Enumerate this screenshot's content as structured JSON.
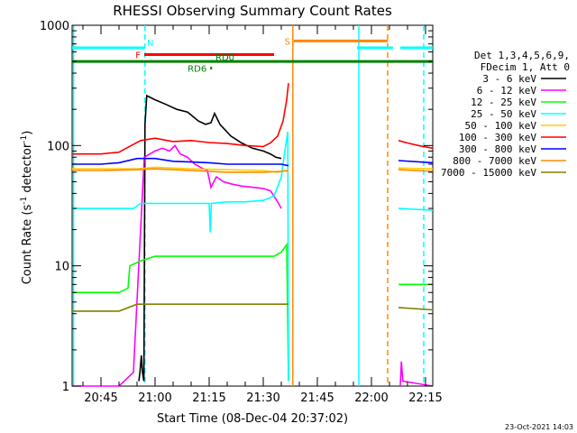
{
  "chart_data": {
    "type": "line",
    "title": "RHESSI Observing Summary Count Rates",
    "xlabel": "Start Time (08-Dec-04 20:37:02)",
    "ylabel": "Count Rate (s⁻¹ detector⁻¹)",
    "ylabel_main": "Count Rate (s",
    "ylabel_sup1": "-1",
    "ylabel_mid": " detector",
    "ylabel_sup2": "-1",
    "ylabel_end": ")",
    "y_scale": "log",
    "ylim": [
      1,
      1000
    ],
    "xlim_minutes_after_20_00": [
      37,
      137
    ],
    "x_ticks": [
      {
        "label": "20:45",
        "t": 45
      },
      {
        "label": "21:00",
        "t": 60
      },
      {
        "label": "21:15",
        "t": 75
      },
      {
        "label": "21:30",
        "t": 90
      },
      {
        "label": "21:45",
        "t": 105
      },
      {
        "label": "22:00",
        "t": 120
      },
      {
        "label": "22:15",
        "t": 135
      }
    ],
    "y_ticks": [
      {
        "label": "1",
        "v": 1
      },
      {
        "label": "10",
        "v": 10
      },
      {
        "label": "100",
        "v": 100
      },
      {
        "label": "1000",
        "v": 1000
      }
    ],
    "legend_header": [
      "Det 1,3,4,5,6,9,",
      "FDecim 1, Att 0"
    ],
    "series": [
      {
        "name": "3 - 6 keV",
        "color": "#000000",
        "points": [
          [
            55.5,
            1.1
          ],
          [
            55.8,
            1.3
          ],
          [
            56.2,
            1.8
          ],
          [
            56.5,
            1.3
          ],
          [
            56.9,
            1.1
          ],
          [
            57.2,
            150
          ],
          [
            57.7,
            260
          ],
          [
            60,
            240
          ],
          [
            63,
            220
          ],
          [
            66,
            200
          ],
          [
            69,
            190
          ],
          [
            72,
            160
          ],
          [
            74,
            150
          ],
          [
            75.5,
            155
          ],
          [
            76.5,
            185
          ],
          [
            78,
            150
          ],
          [
            81,
            120
          ],
          [
            84,
            105
          ],
          [
            87,
            95
          ],
          [
            90,
            90
          ],
          [
            92,
            85
          ],
          [
            93.5,
            80
          ],
          [
            95,
            78
          ]
        ],
        "after": []
      },
      {
        "name": "6 - 12 keV",
        "color": "#ff00ff",
        "points": [
          [
            37,
            1.0
          ],
          [
            50,
            1.0
          ],
          [
            54,
            1.3
          ],
          [
            57,
            80
          ],
          [
            60,
            90
          ],
          [
            62,
            95
          ],
          [
            64,
            90
          ],
          [
            65.5,
            100
          ],
          [
            67,
            85
          ],
          [
            69,
            80
          ],
          [
            71,
            70
          ],
          [
            73,
            65
          ],
          [
            74.5,
            62
          ],
          [
            75.5,
            45
          ],
          [
            77,
            55
          ],
          [
            79,
            50
          ],
          [
            81,
            48
          ],
          [
            84,
            46
          ],
          [
            87,
            45
          ],
          [
            90,
            44
          ],
          [
            92,
            42
          ],
          [
            93,
            38
          ],
          [
            94,
            34
          ],
          [
            95,
            30
          ]
        ],
        "after": [
          [
            128,
            1.0
          ],
          [
            128.3,
            1.6
          ],
          [
            128.7,
            1.1
          ],
          [
            137,
            1.0
          ]
        ]
      },
      {
        "name": "12 - 25 keV",
        "color": "#00ff00",
        "points": [
          [
            37,
            6
          ],
          [
            45,
            6
          ],
          [
            50,
            6
          ],
          [
            52.5,
            6.5
          ],
          [
            53,
            10
          ],
          [
            56,
            11
          ],
          [
            60,
            12
          ],
          [
            65,
            12
          ],
          [
            70,
            12
          ],
          [
            75,
            12
          ],
          [
            80,
            12
          ],
          [
            85,
            12
          ],
          [
            90,
            12
          ],
          [
            93,
            12
          ],
          [
            95,
            13
          ],
          [
            96.5,
            15
          ],
          [
            97,
            1.1
          ]
        ],
        "after": [
          [
            127.5,
            7
          ],
          [
            137,
            7
          ]
        ]
      },
      {
        "name": "25 - 50 keV",
        "color": "#00ffff",
        "points": [
          [
            37,
            30
          ],
          [
            45,
            30
          ],
          [
            50,
            30
          ],
          [
            54,
            30
          ],
          [
            56,
            33
          ],
          [
            60,
            33
          ],
          [
            65,
            33
          ],
          [
            70,
            33
          ],
          [
            74,
            33
          ],
          [
            75,
            33
          ],
          [
            75.3,
            19
          ],
          [
            75.6,
            33
          ],
          [
            80,
            34
          ],
          [
            85,
            34
          ],
          [
            90,
            35
          ],
          [
            93,
            38
          ],
          [
            95,
            55
          ],
          [
            96,
            90
          ],
          [
            96.8,
            130
          ],
          [
            97,
            1.1
          ]
        ],
        "after": [
          [
            127.5,
            30
          ],
          [
            137,
            29
          ]
        ]
      },
      {
        "name": "50 - 100 keV",
        "color": "#ffcc00",
        "points": [
          [
            37,
            64
          ],
          [
            45,
            64
          ],
          [
            55,
            64
          ],
          [
            60,
            66
          ],
          [
            70,
            64
          ],
          [
            80,
            63
          ],
          [
            90,
            62
          ],
          [
            94,
            60
          ],
          [
            96,
            62
          ],
          [
            97,
            60
          ]
        ],
        "after": [
          [
            127.5,
            65
          ],
          [
            137,
            64
          ]
        ]
      },
      {
        "name": "100 - 300 keV",
        "color": "#ff0000",
        "points": [
          [
            37,
            85
          ],
          [
            45,
            85
          ],
          [
            50,
            88
          ],
          [
            52,
            95
          ],
          [
            56,
            110
          ],
          [
            60,
            115
          ],
          [
            65,
            108
          ],
          [
            70,
            110
          ],
          [
            75,
            106
          ],
          [
            80,
            104
          ],
          [
            85,
            100
          ],
          [
            90,
            98
          ],
          [
            92,
            105
          ],
          [
            94,
            120
          ],
          [
            95.5,
            160
          ],
          [
            96.5,
            240
          ],
          [
            97,
            330
          ]
        ],
        "after": [
          [
            127.5,
            110
          ],
          [
            130,
            105
          ],
          [
            133,
            100
          ],
          [
            137,
            95
          ]
        ]
      },
      {
        "name": "300 - 800 keV",
        "color": "#0000ff",
        "points": [
          [
            37,
            70
          ],
          [
            45,
            70
          ],
          [
            50,
            72
          ],
          [
            55,
            78
          ],
          [
            60,
            78
          ],
          [
            65,
            74
          ],
          [
            70,
            73
          ],
          [
            75,
            72
          ],
          [
            80,
            70
          ],
          [
            85,
            70
          ],
          [
            90,
            70
          ],
          [
            95,
            70
          ],
          [
            97,
            68
          ]
        ],
        "after": [
          [
            127.5,
            75
          ],
          [
            137,
            72
          ]
        ]
      },
      {
        "name": "800 - 7000 keV",
        "color": "#ff8800",
        "points": [
          [
            37,
            62
          ],
          [
            45,
            62
          ],
          [
            55,
            63
          ],
          [
            60,
            64
          ],
          [
            70,
            62
          ],
          [
            80,
            60
          ],
          [
            90,
            60
          ],
          [
            95,
            61
          ],
          [
            97,
            62
          ]
        ],
        "after": [
          [
            127.5,
            63
          ],
          [
            137,
            61
          ]
        ]
      },
      {
        "name": "7000 - 15000 keV",
        "color": "#808000",
        "points": [
          [
            37,
            4.2
          ],
          [
            45,
            4.2
          ],
          [
            50,
            4.2
          ],
          [
            55,
            4.8
          ],
          [
            60,
            4.8
          ],
          [
            65,
            4.8
          ],
          [
            70,
            4.8
          ],
          [
            75,
            4.8
          ],
          [
            80,
            4.8
          ],
          [
            85,
            4.8
          ],
          [
            90,
            4.8
          ],
          [
            95,
            4.8
          ],
          [
            97,
            4.8
          ]
        ],
        "after": [
          [
            127.5,
            4.5
          ],
          [
            137,
            4.3
          ]
        ]
      }
    ],
    "flags": [
      {
        "label": "N",
        "color": "#00ffff",
        "start": 37,
        "end": 57,
        "level": 650,
        "label_side": "right"
      },
      {
        "label": "F",
        "color": "#ff0000",
        "start": 57,
        "end": 93,
        "level": 570,
        "label_side": "left"
      },
      {
        "label": "",
        "color": "#008000",
        "start": 37,
        "end": 137,
        "level": 500,
        "label_side": "none"
      },
      {
        "label": "RD0",
        "color": "#008000",
        "start": 75.5,
        "end": 76,
        "level": 500,
        "label_side": "right-above"
      },
      {
        "label": "RD6",
        "color": "#008000",
        "start": 75.3,
        "end": 75.8,
        "level": 440,
        "label_side": "left"
      },
      {
        "label": "S",
        "color": "#ff8800",
        "start": 98.5,
        "end": 124.5,
        "level": 740,
        "label_side": "left"
      },
      {
        "label": "",
        "color": "#00ffff",
        "start": 116,
        "end": 126,
        "level": 650,
        "label_side": "none"
      },
      {
        "label": "",
        "color": "#00ffff",
        "start": 128,
        "end": 137,
        "level": 650,
        "label_side": "none"
      }
    ],
    "vertical_markers": [
      {
        "t": 37.4,
        "color": "#00ffff",
        "style": "solid"
      },
      {
        "t": 57.2,
        "color": "#00ffff",
        "style": "dashed"
      },
      {
        "t": 98.2,
        "color": "#ff8800",
        "style": "solid"
      },
      {
        "t": 116.5,
        "color": "#00ffff",
        "style": "solid"
      },
      {
        "t": 124.5,
        "color": "#ff8800",
        "style": "dashed"
      },
      {
        "t": 134.5,
        "color": "#00ffff",
        "style": "dashed"
      }
    ]
  },
  "timestamp": "23-Oct-2021 14:03"
}
